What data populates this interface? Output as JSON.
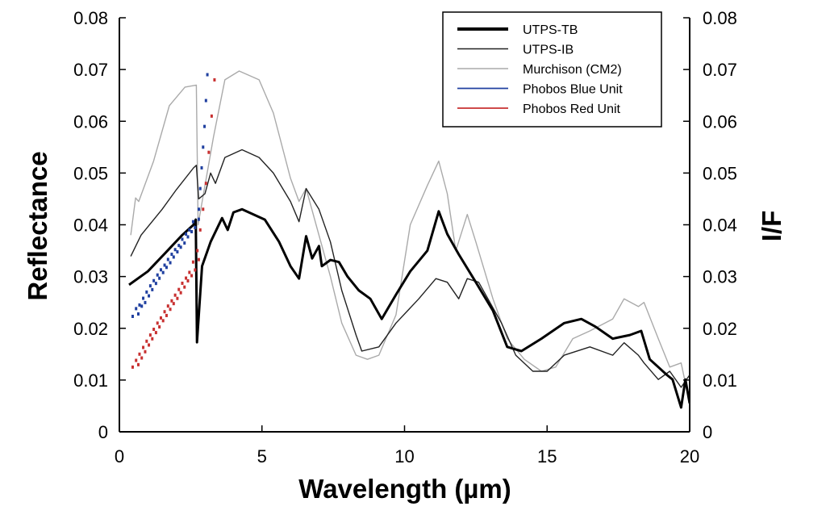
{
  "chart_data": {
    "type": "line",
    "xlabel": "Wavelength (µm)",
    "ylabel": "Reflectance",
    "ylabel_right": "I/F",
    "xlim": [
      0,
      20
    ],
    "ylim": [
      0,
      0.08
    ],
    "xticks": [
      "0",
      "5",
      "10",
      "15",
      "20"
    ],
    "xtick_values": [
      0,
      5,
      10,
      15,
      20
    ],
    "yticks": [
      "0",
      "0.01",
      "0.02",
      "0.03",
      "0.04",
      "0.05",
      "0.06",
      "0.07",
      "0.08"
    ],
    "ytick_values": [
      0,
      0.01,
      0.02,
      0.03,
      0.04,
      0.05,
      0.06,
      0.07,
      0.08
    ],
    "grid": false,
    "legend_position": "top-right",
    "series": [
      {
        "name": "UTPS-TB",
        "color": "#000000",
        "style": "thick",
        "x": [
          0.34,
          1.0,
          1.6,
          2.2,
          2.6,
          2.68,
          2.72,
          2.9,
          3.2,
          3.6,
          3.8,
          4.0,
          4.3,
          5.1,
          5.6,
          6.0,
          6.3,
          6.55,
          6.76,
          7.0,
          7.1,
          7.4,
          7.7,
          8.0,
          8.4,
          8.8,
          9.2,
          9.7,
          10.2,
          10.8,
          11.2,
          11.5,
          11.9,
          12.5,
          13.1,
          13.6,
          14.1,
          14.8,
          15.6,
          16.2,
          16.7,
          17.3,
          17.9,
          18.3,
          18.6,
          18.9,
          19.2,
          19.4,
          19.7,
          19.85,
          20
        ],
        "y": [
          0.0284,
          0.031,
          0.0345,
          0.038,
          0.04,
          0.041,
          0.0173,
          0.032,
          0.0367,
          0.0413,
          0.039,
          0.0424,
          0.043,
          0.041,
          0.0367,
          0.032,
          0.0296,
          0.0378,
          0.0335,
          0.0359,
          0.032,
          0.0332,
          0.0328,
          0.03,
          0.0273,
          0.0257,
          0.0218,
          0.0265,
          0.031,
          0.035,
          0.0426,
          0.0382,
          0.0343,
          0.0289,
          0.0234,
          0.0164,
          0.0156,
          0.018,
          0.021,
          0.0218,
          0.0203,
          0.018,
          0.0187,
          0.0195,
          0.014,
          0.0125,
          0.011,
          0.0101,
          0.0047,
          0.0101,
          0.0055
        ]
      },
      {
        "name": "UTPS-IB",
        "color": "#222222",
        "style": "thin",
        "x": [
          0.4,
          0.76,
          1.5,
          2.0,
          2.6,
          2.7,
          2.78,
          3.0,
          3.2,
          3.37,
          3.7,
          4.3,
          4.9,
          5.4,
          6.0,
          6.3,
          6.55,
          7.0,
          7.4,
          7.8,
          8.3,
          8.5,
          9.1,
          9.7,
          10.5,
          11.1,
          11.5,
          11.9,
          12.2,
          12.6,
          13.4,
          13.9,
          14.5,
          15.0,
          15.6,
          16.5,
          17.3,
          17.7,
          18.2,
          18.4,
          18.9,
          19.3,
          19.7,
          20
        ],
        "y": [
          0.0339,
          0.038,
          0.043,
          0.0468,
          0.051,
          0.0515,
          0.045,
          0.046,
          0.05,
          0.048,
          0.053,
          0.0545,
          0.053,
          0.05,
          0.0445,
          0.0406,
          0.047,
          0.043,
          0.0367,
          0.0273,
          0.0187,
          0.0156,
          0.0164,
          0.021,
          0.0257,
          0.0296,
          0.0289,
          0.0257,
          0.0296,
          0.0289,
          0.021,
          0.0148,
          0.0117,
          0.0117,
          0.0148,
          0.0164,
          0.0148,
          0.0172,
          0.0148,
          0.0133,
          0.0101,
          0.0117,
          0.0086,
          0.011
        ]
      },
      {
        "name": "Murchison (CM2)",
        "color": "#aaaaaa",
        "style": "thin",
        "x": [
          0.4,
          0.57,
          0.68,
          1.2,
          1.75,
          2.3,
          2.7,
          2.76,
          3.0,
          3.3,
          3.7,
          4.2,
          4.9,
          5.4,
          6.0,
          6.3,
          6.55,
          7.0,
          7.4,
          7.8,
          8.3,
          8.7,
          9.1,
          9.7,
          10.2,
          10.8,
          11.2,
          11.5,
          11.8,
          12.2,
          12.5,
          13.1,
          13.6,
          14.2,
          14.8,
          15.3,
          15.9,
          16.5,
          17.3,
          17.7,
          18.2,
          18.4,
          18.9,
          19.3,
          19.7,
          20
        ],
        "y": [
          0.038,
          0.0452,
          0.0445,
          0.0523,
          0.063,
          0.0666,
          0.067,
          0.04,
          0.0476,
          0.057,
          0.068,
          0.0697,
          0.068,
          0.0616,
          0.049,
          0.0445,
          0.047,
          0.038,
          0.03,
          0.021,
          0.0148,
          0.014,
          0.0148,
          0.0226,
          0.04,
          0.0476,
          0.0523,
          0.046,
          0.035,
          0.042,
          0.0367,
          0.0257,
          0.018,
          0.014,
          0.0117,
          0.0125,
          0.018,
          0.0195,
          0.0218,
          0.0257,
          0.0242,
          0.025,
          0.018,
          0.0125,
          0.0133,
          0.0055
        ]
      },
      {
        "name": "Phobos Blue Unit",
        "color": "#2040a0",
        "style": "points",
        "x": [
          0.48,
          0.6,
          0.72,
          0.85,
          0.97,
          1.1,
          1.22,
          1.35,
          1.47,
          1.6,
          1.72,
          1.85,
          1.97,
          2.1,
          2.22,
          2.35,
          2.47,
          2.6,
          2.8,
          2.85,
          2.9,
          2.95,
          3.0,
          3.05,
          3.1
        ],
        "y": [
          0.0223,
          0.0238,
          0.0245,
          0.0258,
          0.027,
          0.0282,
          0.0292,
          0.0303,
          0.0313,
          0.0322,
          0.0333,
          0.0343,
          0.0352,
          0.036,
          0.0372,
          0.0382,
          0.039,
          0.0406,
          0.043,
          0.047,
          0.051,
          0.055,
          0.059,
          0.064,
          0.069
        ]
      },
      {
        "name": "Phobos Red Unit",
        "color": "#c83030",
        "style": "points",
        "x": [
          0.48,
          0.6,
          0.72,
          0.85,
          0.97,
          1.1,
          1.22,
          1.35,
          1.47,
          1.6,
          1.72,
          1.85,
          1.97,
          2.1,
          2.22,
          2.35,
          2.47,
          2.6,
          2.75,
          2.85,
          2.95,
          3.05,
          3.15,
          3.25,
          3.35
        ],
        "y": [
          0.0125,
          0.0138,
          0.015,
          0.0163,
          0.0175,
          0.0187,
          0.0198,
          0.021,
          0.022,
          0.0232,
          0.0243,
          0.0253,
          0.0264,
          0.0275,
          0.0287,
          0.0297,
          0.0308,
          0.0328,
          0.035,
          0.039,
          0.043,
          0.048,
          0.054,
          0.061,
          0.068
        ]
      }
    ]
  }
}
